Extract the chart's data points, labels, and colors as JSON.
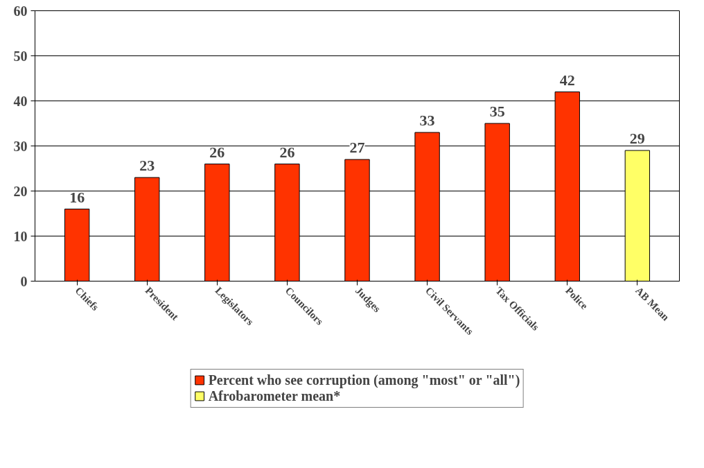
{
  "chart_data": {
    "type": "bar",
    "categories": [
      "Chiefs",
      "President",
      "Legislators",
      "Councilors",
      "Judges",
      "Civil Servants",
      "Tax Officials",
      "Police",
      "AB Mean"
    ],
    "series": [
      {
        "name": "Percent who see corruption (among \"most\" or \"all\")",
        "color": "#ff3300",
        "values": [
          16,
          23,
          26,
          26,
          27,
          33,
          35,
          42,
          null
        ]
      },
      {
        "name": "Afrobarometer mean*",
        "color": "#ffff66",
        "values": [
          null,
          null,
          null,
          null,
          null,
          null,
          null,
          null,
          29
        ]
      }
    ],
    "ylim": [
      0,
      60
    ],
    "yticks": [
      0,
      10,
      20,
      30,
      40,
      50,
      60
    ],
    "grid": "y",
    "data_labels": true,
    "legend": "bottom"
  }
}
